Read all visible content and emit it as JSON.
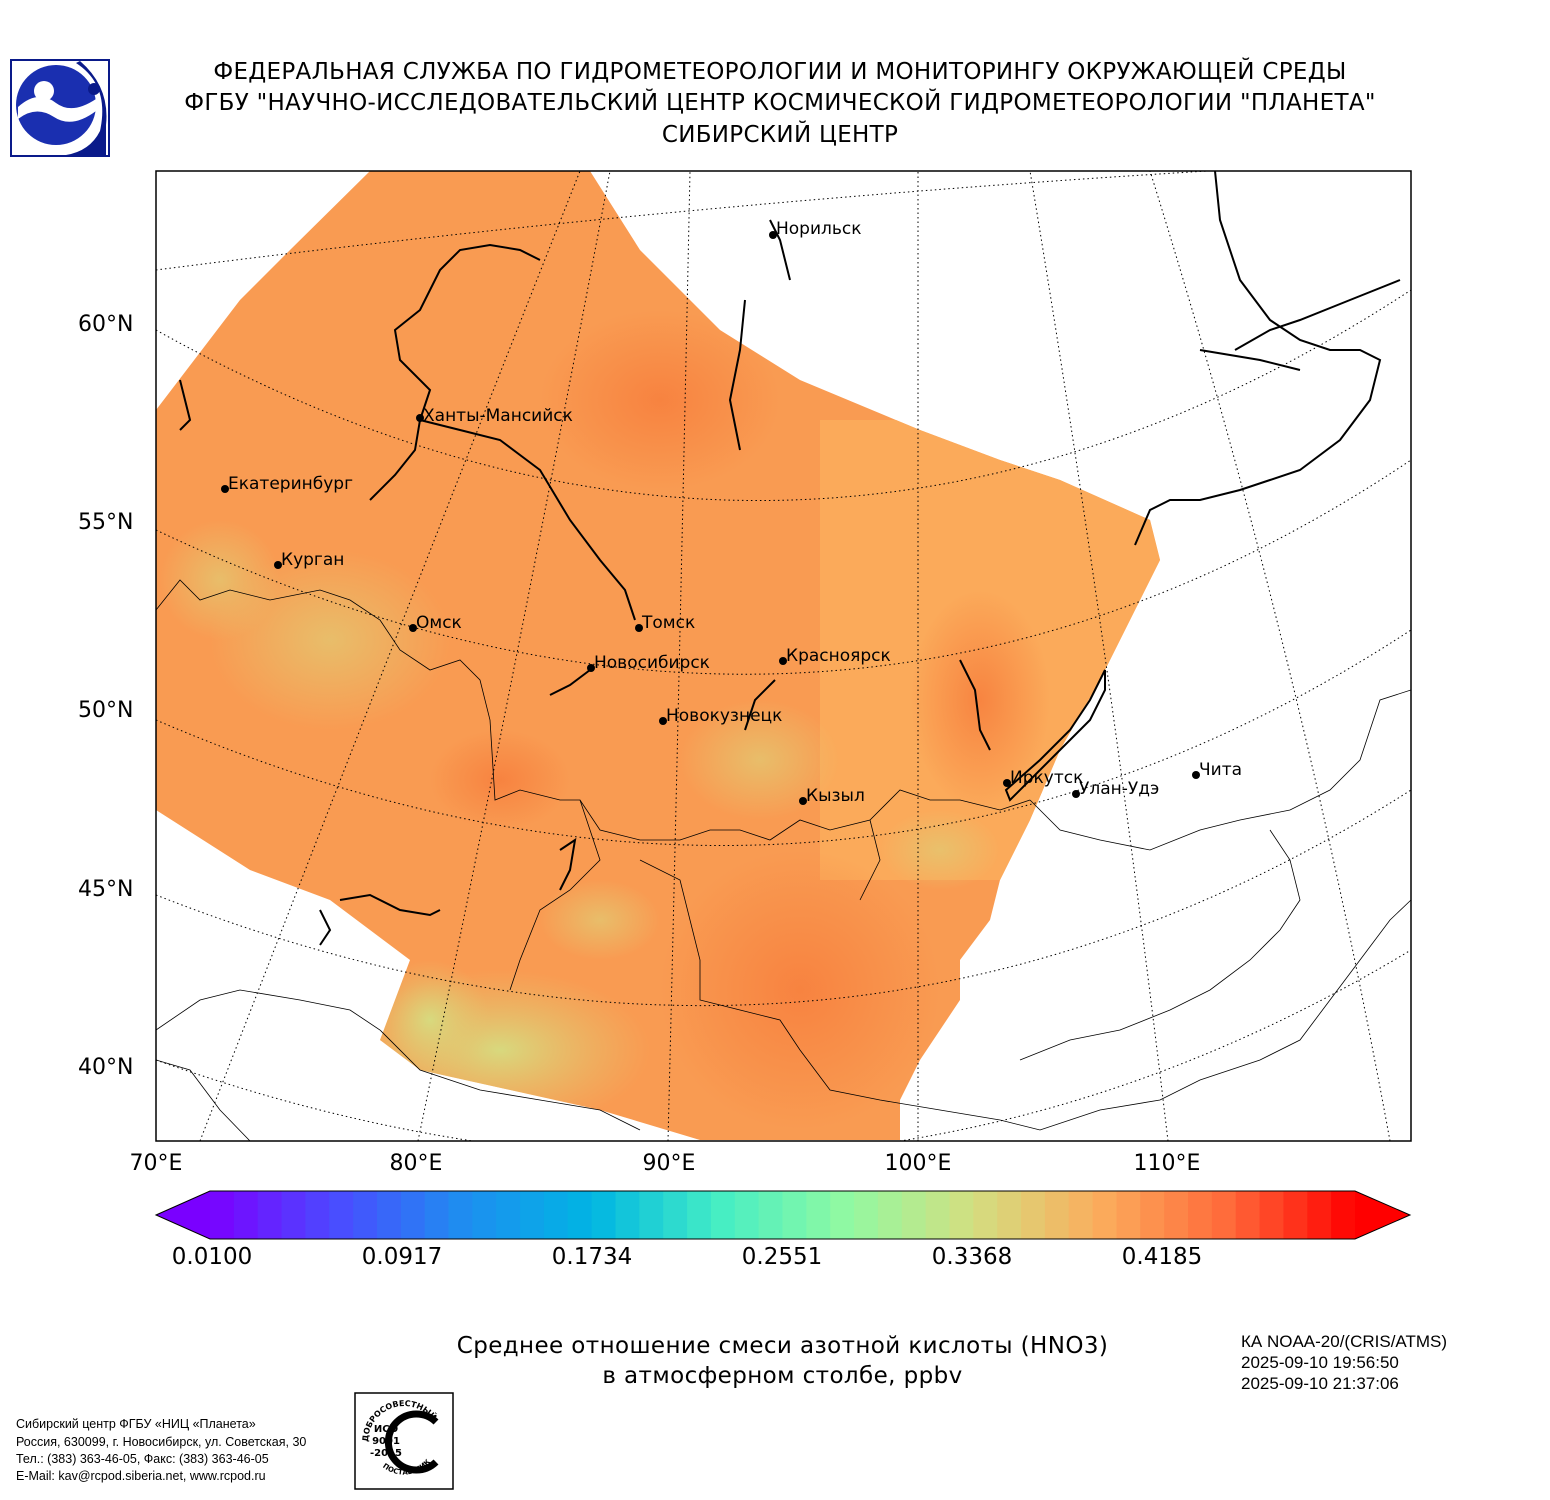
{
  "header": {
    "line1": "ФЕДЕРАЛЬНАЯ СЛУЖБА ПО ГИДРОМЕТЕОРОЛОГИИ И МОНИТОРИНГУ ОКРУЖАЮЩЕЙ СРЕДЫ",
    "line2": "ФГБУ \"НАУЧНО-ИССЛЕДОВАТЕЛЬСКИЙ ЦЕНТР КОСМИЧЕСКОЙ ГИДРОМЕТЕОРОЛОГИИ \"ПЛАНЕТА\"",
    "line3": "СИБИРСКИЙ ЦЕНТР"
  },
  "map": {
    "lat_labels": [
      "60°N",
      "55°N",
      "50°N",
      "45°N",
      "40°N"
    ],
    "lon_labels": [
      "70°E",
      "80°E",
      "90°E",
      "100°E",
      "110°E"
    ],
    "cities": [
      "Норильск",
      "Ханты-Мансийск",
      "Екатеринбург",
      "Курган",
      "Омск",
      "Томск",
      "Новосибирск",
      "Красноярск",
      "Новокузнецк",
      "Иркутск",
      "Улан-Удэ",
      "Чита",
      "Кызыл"
    ]
  },
  "colorbar": {
    "ticks": [
      "0.0100",
      "0.0917",
      "0.1734",
      "0.2551",
      "0.3368",
      "0.4185"
    ],
    "min": 0.01,
    "max": 0.5
  },
  "title": {
    "line1": "Среднее отношение смеси азотной кислоты (HNO3)",
    "line2": "в атмосферном столбе, ppbv"
  },
  "satellite": {
    "name": "КА NOAA-20/(CRIS/ATMS)",
    "start": "2025-09-10 19:56:50",
    "end": "2025-09-10 21:37:06"
  },
  "organization": {
    "line1": "Сибирский центр ФГБУ «НИЦ «Планета»",
    "line2": "Россия, 630099, г. Новосибирск, ул. Советская, 30",
    "line3": "Тел.: (383) 363-46-05, Факс: (383) 363-46-05",
    "line4": "E-Mail: kav@rcpod.siberia.net, www.rcpod.ru"
  },
  "certificate": {
    "top": "ДОБРОСОВЕСТНЫЙ",
    "line1": "ИСО",
    "line2": "9001",
    "line3": "-2015",
    "bottom": "ПОСТАВЩИК"
  },
  "colors": {
    "field_high": "#f98a48",
    "field_mid": "#fbac5c",
    "field_low": "#d8dc80",
    "colormap": [
      "#7a00ff",
      "#4a4cff",
      "#1e8ef0",
      "#00b5e3",
      "#45eec4",
      "#91f9a2",
      "#d3de80",
      "#fbac5c",
      "#ff6a3a",
      "#ff0000"
    ]
  }
}
